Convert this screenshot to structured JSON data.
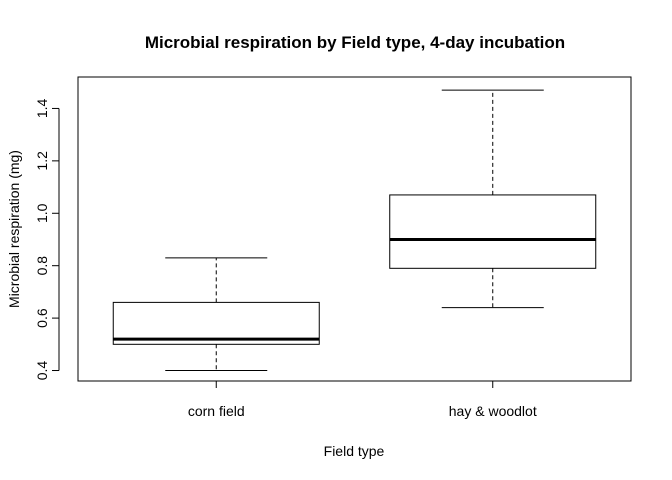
{
  "chart_data": {
    "type": "boxplot",
    "title": "Microbial respiration by Field type, 4-day incubation",
    "xlabel": "Field type",
    "ylabel": "Microbial respiration (mg)",
    "ylim": [
      0.36,
      1.52
    ],
    "yticks": [
      0.4,
      0.6,
      0.8,
      1.0,
      1.2,
      1.4
    ],
    "ytick_labels": [
      "0.4",
      "0.6",
      "0.8",
      "1.0",
      "1.2",
      "1.4"
    ],
    "categories": [
      "corn field",
      "hay & woodlot"
    ],
    "boxes": [
      {
        "category": "corn field",
        "whisker_low": 0.4,
        "q1": 0.5,
        "median": 0.52,
        "q3": 0.66,
        "whisker_high": 0.83
      },
      {
        "category": "hay & woodlot",
        "whisker_low": 0.64,
        "q1": 0.79,
        "median": 0.9,
        "q3": 1.07,
        "whisker_high": 1.47
      }
    ],
    "grid": false,
    "legend": "none"
  }
}
